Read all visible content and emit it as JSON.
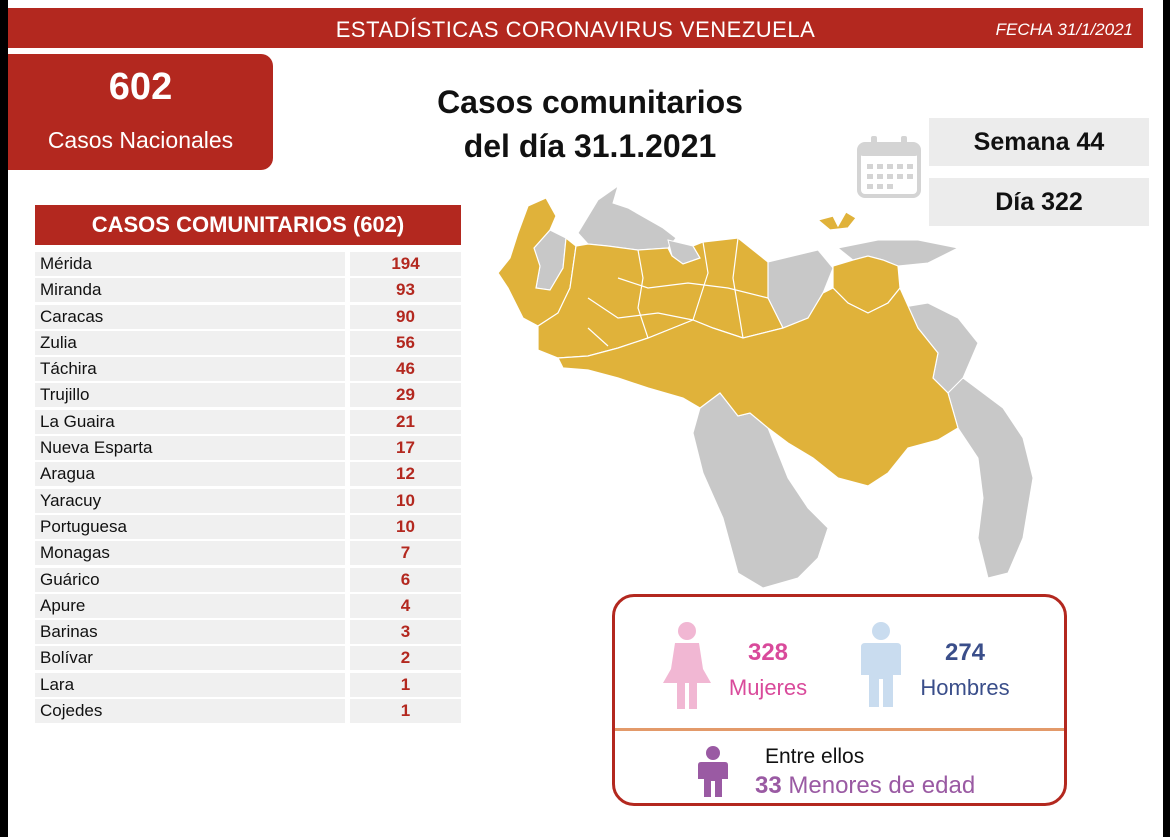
{
  "header": {
    "title": "ESTADÍSTICAS CORONAVIRUS VENEZUELA",
    "date": "FECHA 31/1/2021"
  },
  "total": {
    "value": "602",
    "label": "Casos Nacionales"
  },
  "heading": {
    "line1": "Casos comunitarios",
    "line2": "del día 31.1.2021"
  },
  "week": "Semana 44",
  "day": "Día 322",
  "table": {
    "title": "CASOS COMUNITARIOS (602)",
    "rows": [
      {
        "name": "Mérida",
        "value": "194"
      },
      {
        "name": "Miranda",
        "value": "93"
      },
      {
        "name": "Caracas",
        "value": "90"
      },
      {
        "name": "Zulia",
        "value": "56"
      },
      {
        "name": "Táchira",
        "value": "46"
      },
      {
        "name": "Trujillo",
        "value": "29"
      },
      {
        "name": "La Guaira",
        "value": "21"
      },
      {
        "name": "Nueva Esparta",
        "value": "17"
      },
      {
        "name": "Aragua",
        "value": "12"
      },
      {
        "name": "Yaracuy",
        "value": "10"
      },
      {
        "name": "Portuguesa",
        "value": "10"
      },
      {
        "name": "Monagas",
        "value": "7"
      },
      {
        "name": "Guárico",
        "value": "6"
      },
      {
        "name": "Apure",
        "value": "4"
      },
      {
        "name": "Barinas",
        "value": "3"
      },
      {
        "name": "Bolívar",
        "value": "2"
      },
      {
        "name": "Lara",
        "value": "1"
      },
      {
        "name": "Cojedes",
        "value": "1"
      }
    ]
  },
  "gender": {
    "women_count": "328",
    "women_label": "Mujeres",
    "men_count": "274",
    "men_label": "Hombres",
    "among_label": "Entre ellos",
    "minors_count": "33",
    "minors_label": "Menores de edad"
  },
  "colors": {
    "brand_red": "#b3281f",
    "affected_state": "#e0b23a",
    "unaffected_state": "#c8c8c8",
    "women": "#d94a9b",
    "men": "#3a4e8a",
    "minors": "#9a5aa3"
  },
  "icons": {
    "calendar": "calendar-icon",
    "woman": "woman-icon",
    "man": "man-icon",
    "child": "child-icon"
  }
}
